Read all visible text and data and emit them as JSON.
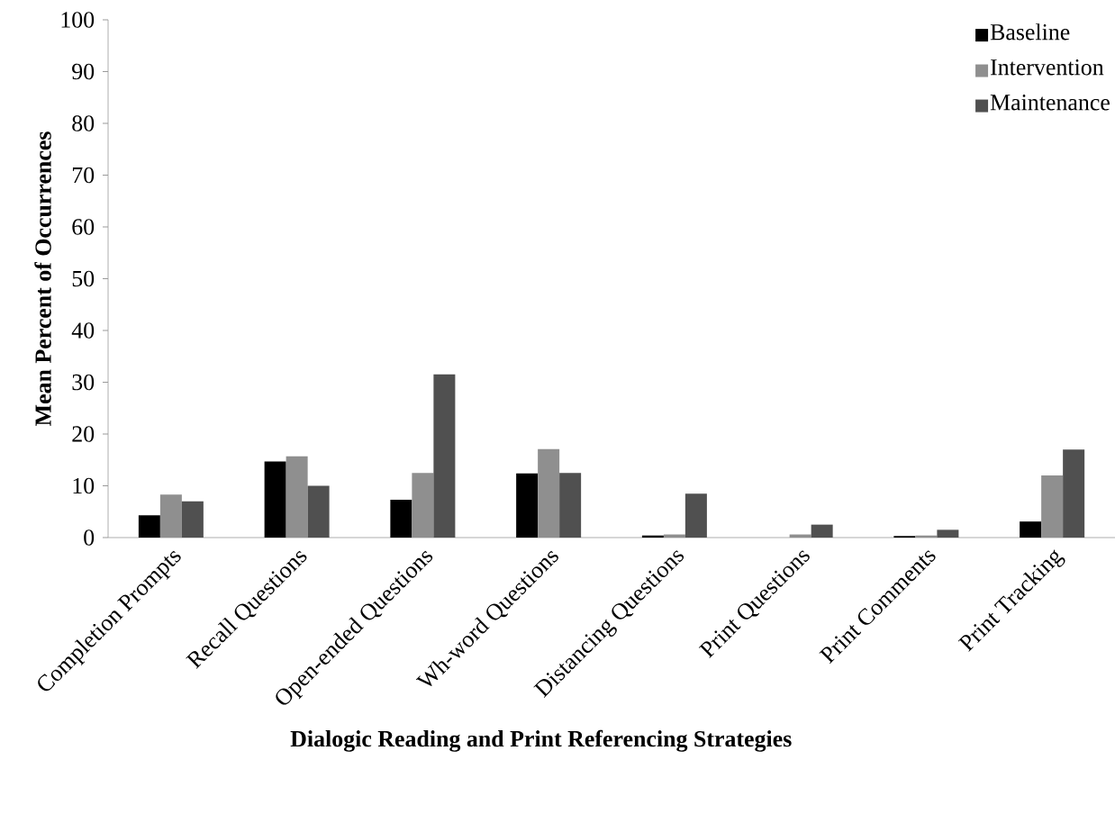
{
  "chart_data": {
    "type": "bar",
    "xlabel": "Dialogic Reading and Print Referencing Strategies",
    "ylabel": "Mean Percent of Occurrences",
    "categories": [
      "Completion Prompts",
      "Recall Questions",
      "Open-ended Questions",
      "Wh-word Questions",
      "Distancing Questions",
      "Print Questions",
      "Print Comments",
      "Print Tracking"
    ],
    "series": [
      {
        "name": "Baseline",
        "color": "#000000",
        "values": [
          4.3,
          14.7,
          7.3,
          12.4,
          0.4,
          0,
          0.3,
          3.1
        ]
      },
      {
        "name": "Intervention",
        "color": "#8f8f8f",
        "values": [
          8.3,
          15.7,
          12.5,
          17.1,
          0.6,
          0.6,
          0.4,
          12.0
        ]
      },
      {
        "name": "Maintenance",
        "color": "#505050",
        "values": [
          7.0,
          10.0,
          31.5,
          12.5,
          8.5,
          2.5,
          1.5,
          17.0
        ]
      }
    ],
    "ylim": [
      0,
      100
    ],
    "yticks": [
      0,
      10,
      20,
      30,
      40,
      50,
      60,
      70,
      80,
      90,
      100
    ],
    "legend": "top right"
  }
}
